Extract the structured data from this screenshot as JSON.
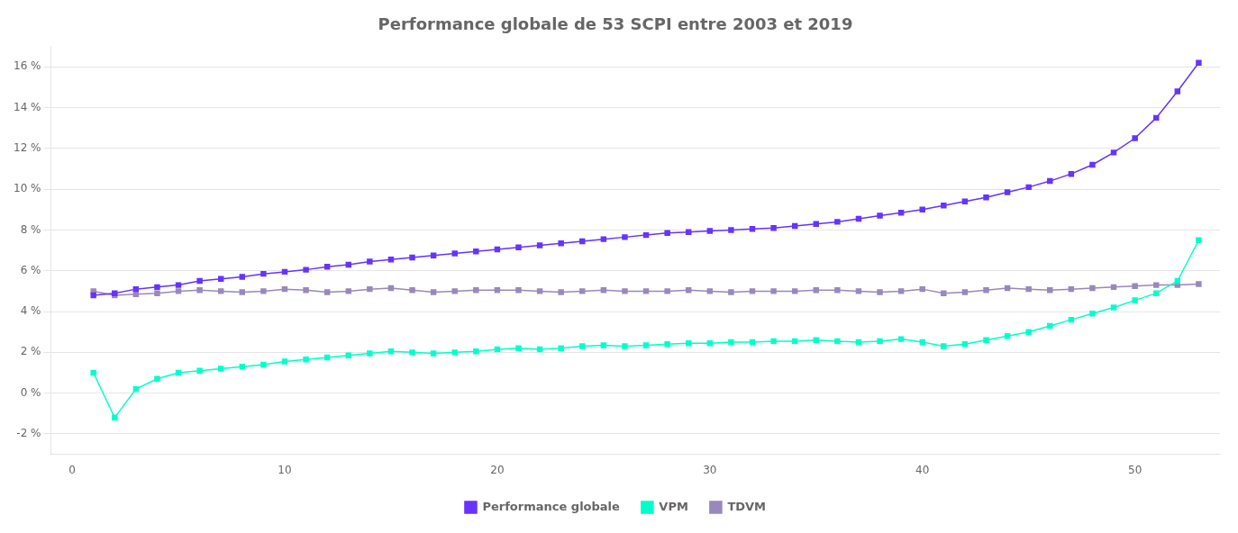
{
  "chart_data": {
    "type": "line",
    "title": "Performance globale de 53 SCPI entre 2003 et 2019",
    "x": [
      1,
      2,
      3,
      4,
      5,
      6,
      7,
      8,
      9,
      10,
      11,
      12,
      13,
      14,
      15,
      16,
      17,
      18,
      19,
      20,
      21,
      22,
      23,
      24,
      25,
      26,
      27,
      28,
      29,
      30,
      31,
      32,
      33,
      34,
      35,
      36,
      37,
      38,
      39,
      40,
      41,
      42,
      43,
      44,
      45,
      46,
      47,
      48,
      49,
      50,
      51,
      52,
      53
    ],
    "series": [
      {
        "name": "Performance globale",
        "color": "#6633ff",
        "marker": "square",
        "values": [
          4.8,
          4.9,
          5.1,
          5.2,
          5.3,
          5.5,
          5.6,
          5.7,
          5.85,
          5.95,
          6.05,
          6.2,
          6.3,
          6.45,
          6.55,
          6.65,
          6.75,
          6.85,
          6.95,
          7.05,
          7.15,
          7.25,
          7.35,
          7.45,
          7.55,
          7.65,
          7.75,
          7.85,
          7.9,
          7.95,
          8.0,
          8.05,
          8.1,
          8.2,
          8.3,
          8.4,
          8.55,
          8.7,
          8.85,
          9.0,
          9.2,
          9.4,
          9.6,
          9.85,
          10.1,
          10.4,
          10.75,
          11.2,
          11.8,
          12.5,
          13.5,
          14.8,
          16.2
        ]
      },
      {
        "name": "VPM",
        "color": "#00ffcc",
        "marker": "square",
        "values": [
          1.0,
          -1.2,
          0.2,
          0.7,
          1.0,
          1.1,
          1.2,
          1.3,
          1.4,
          1.55,
          1.65,
          1.75,
          1.85,
          1.95,
          2.05,
          2.0,
          1.95,
          2.0,
          2.05,
          2.15,
          2.2,
          2.15,
          2.2,
          2.3,
          2.35,
          2.3,
          2.35,
          2.4,
          2.45,
          2.45,
          2.5,
          2.5,
          2.55,
          2.55,
          2.6,
          2.55,
          2.5,
          2.55,
          2.65,
          2.5,
          2.3,
          2.4,
          2.6,
          2.8,
          3.0,
          3.3,
          3.6,
          3.9,
          4.2,
          4.55,
          4.9,
          5.5,
          7.5
        ]
      },
      {
        "name": "TDVM",
        "color": "#9988bb",
        "marker": "square",
        "values": [
          5.0,
          4.8,
          4.85,
          4.9,
          5.0,
          5.05,
          5.0,
          4.95,
          5.0,
          5.1,
          5.05,
          4.95,
          5.0,
          5.1,
          5.15,
          5.05,
          4.95,
          5.0,
          5.05,
          5.05,
          5.05,
          5.0,
          4.95,
          5.0,
          5.05,
          5.0,
          5.0,
          5.0,
          5.05,
          5.0,
          4.95,
          5.0,
          5.0,
          5.0,
          5.05,
          5.05,
          5.0,
          4.95,
          5.0,
          5.1,
          4.9,
          4.95,
          5.05,
          5.15,
          5.1,
          5.05,
          5.1,
          5.15,
          5.2,
          5.25,
          5.3,
          5.3,
          5.35
        ]
      }
    ],
    "xlim": [
      -1,
      54
    ],
    "xticks": [
      0,
      10,
      20,
      30,
      40,
      50
    ],
    "ylim": [
      -3.0,
      17.0
    ],
    "yticks": [
      {
        "value": -2,
        "label": "-2 %"
      },
      {
        "value": 0,
        "label": "0 %"
      },
      {
        "value": 2,
        "label": "2 %"
      },
      {
        "value": 4,
        "label": "4 %"
      },
      {
        "value": 6,
        "label": "6 %"
      },
      {
        "value": 8,
        "label": "8 %"
      },
      {
        "value": 10,
        "label": "10 %"
      },
      {
        "value": 12,
        "label": "12 %"
      },
      {
        "value": 14,
        "label": "14 %"
      },
      {
        "value": 16,
        "label": "16 %"
      }
    ],
    "grid": true,
    "legend": "bottom"
  }
}
